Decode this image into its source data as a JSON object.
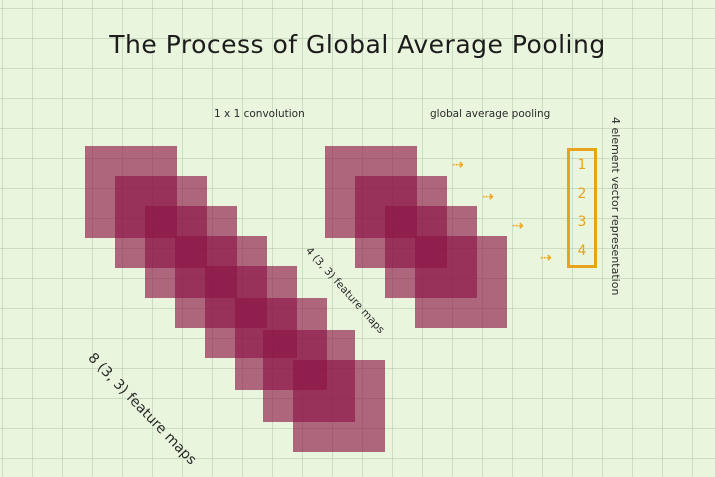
{
  "title": "The Process of Global Average Pooling",
  "labels": {
    "conv": "1 x 1 convolution",
    "gap": "global average pooling",
    "fm8": "8 (3, 3) feature maps",
    "fm4": "4 (3, 3) feature maps",
    "vector": "4 element vector representation"
  },
  "vector_values": [
    "1",
    "2",
    "3",
    "4"
  ],
  "colors": {
    "map": "#8c1446",
    "accent": "#e9a21c",
    "background": "#eaf5de"
  }
}
